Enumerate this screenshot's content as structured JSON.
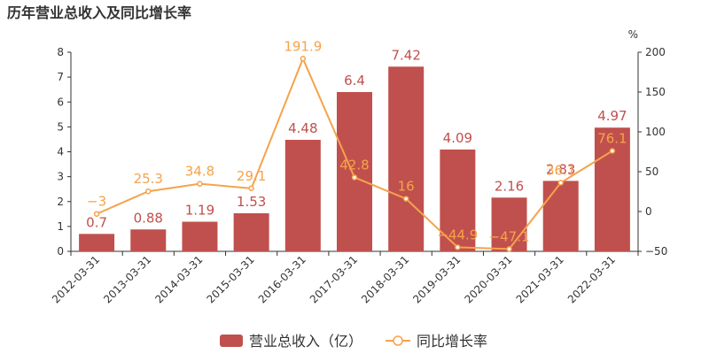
{
  "chart_data": {
    "type": "bar+line",
    "title": "历年营业总收入及同比增长率",
    "categories": [
      "2012-03-31",
      "2013-03-31",
      "2014-03-31",
      "2015-03-31",
      "2016-03-31",
      "2017-03-31",
      "2018-03-31",
      "2019-03-31",
      "2020-03-31",
      "2021-03-31",
      "2022-03-31"
    ],
    "series": [
      {
        "name": "营业总收入（亿）",
        "type": "bar",
        "axis": "left",
        "values": [
          0.7,
          0.88,
          1.19,
          1.53,
          4.48,
          6.4,
          7.42,
          4.09,
          2.16,
          2.83,
          4.97
        ],
        "labels": [
          "0.7",
          "0.88",
          "1.19",
          "1.53",
          "4.48",
          "6.4",
          "7.42",
          "4.09",
          "2.16",
          "2.83",
          "4.97"
        ],
        "color": "#c0504d"
      },
      {
        "name": "同比增长率",
        "type": "line",
        "axis": "right",
        "values": [
          -3,
          25.3,
          34.8,
          29.1,
          191.9,
          42.8,
          16,
          -44.9,
          -47.1,
          36.1,
          76.1
        ],
        "labels": [
          "−3",
          "25.3",
          "34.8",
          "29.1",
          "191.9",
          "42.8",
          "16",
          "−44.9",
          "−47.1",
          "36.1",
          "76.1"
        ],
        "color": "#f5a34b"
      }
    ],
    "y_left": {
      "min": 0,
      "max": 8,
      "ticks": [
        "0",
        "1",
        "2",
        "3",
        "4",
        "5",
        "6",
        "7",
        "8"
      ]
    },
    "y_right": {
      "min": -50,
      "max": 200,
      "unit": "%",
      "ticks": [
        "−50",
        "0",
        "50",
        "100",
        "150",
        "200"
      ]
    },
    "grid": false,
    "legend_position": "bottom-center"
  }
}
